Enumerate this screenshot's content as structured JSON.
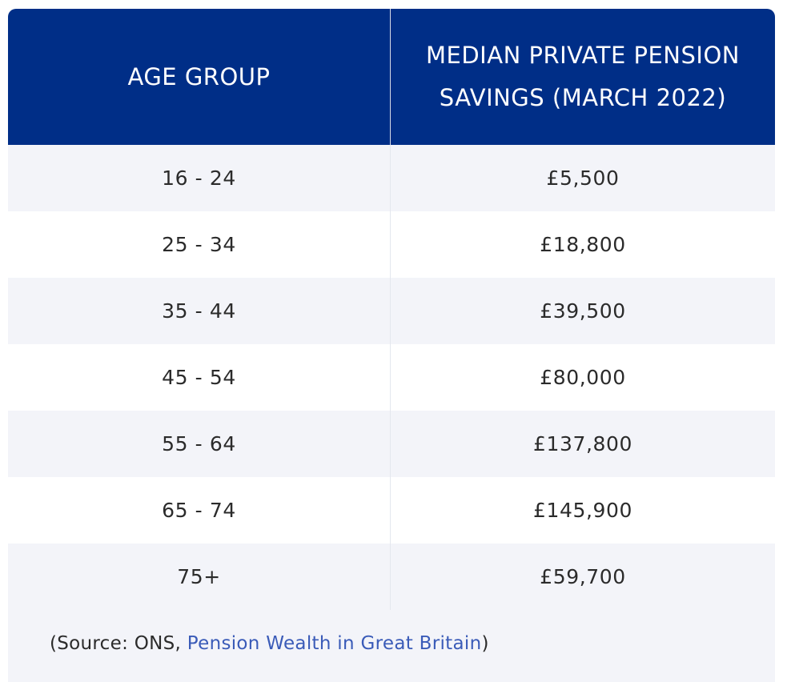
{
  "table": {
    "headers": [
      "AGE GROUP",
      "MEDIAN PRIVATE PENSION SAVINGS (MARCH 2022)"
    ],
    "header_lines_col2": [
      "MEDIAN PRIVATE PENSION",
      "SAVINGS (MARCH 2022)"
    ],
    "rows": [
      {
        "age_group": "16 - 24",
        "savings": "£5,500"
      },
      {
        "age_group": "25 - 34",
        "savings": "£18,800"
      },
      {
        "age_group": "35 - 44",
        "savings": "£39,500"
      },
      {
        "age_group": "45 - 54",
        "savings": "£80,000"
      },
      {
        "age_group": "55 - 64",
        "savings": "£137,800"
      },
      {
        "age_group": "65 - 74",
        "savings": "£145,900"
      },
      {
        "age_group": "75+",
        "savings": "£59,700"
      }
    ]
  },
  "source": {
    "prefix": "(Source: ONS, ",
    "link_text": "Pension Wealth in Great Britain",
    "suffix": ")"
  },
  "colors": {
    "header_bg": "#002e87",
    "header_text": "#ffffff",
    "row_alt_bg": "#f3f4f9",
    "link": "#3a5bb8"
  }
}
